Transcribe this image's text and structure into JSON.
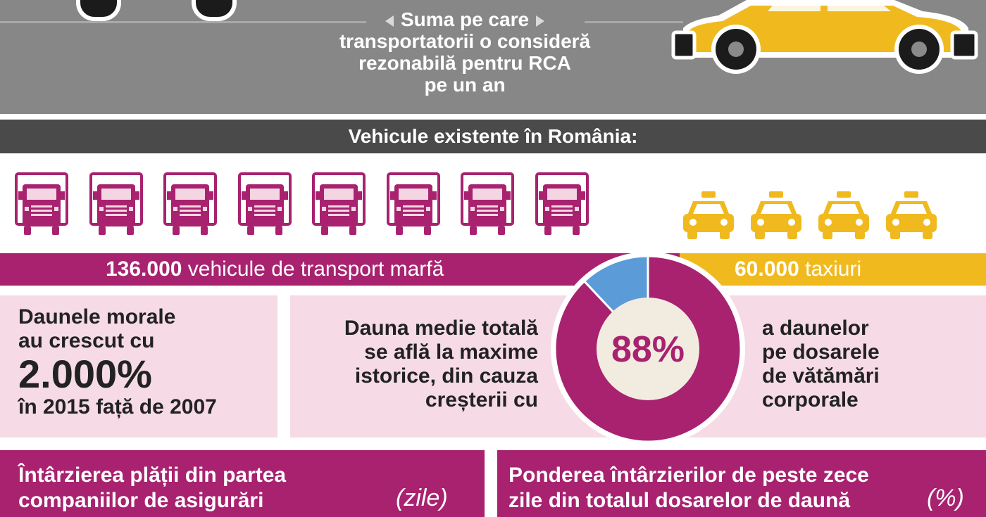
{
  "top": {
    "caption_lines": [
      "Suma pe care",
      "transportatorii o consideră",
      "rezonabilă pentru RCA",
      "pe un an"
    ]
  },
  "vehicles": {
    "header": "Vehicule existente în România:",
    "freight_count": "136.000",
    "freight_label": "vehicule de transport marfă",
    "taxi_count": "60.000",
    "taxi_label": "taxiuri",
    "truck_icon": "truck-icon",
    "taxi_icon": "taxi-icon"
  },
  "moral": {
    "line1": "Daunele morale",
    "line2": "au crescut cu",
    "value": "2.000%",
    "line4": "în 2015 față de 2007"
  },
  "damage": {
    "left_lines": [
      "Dauna medie totală",
      "se află la maxime",
      "istorice, din cauza",
      "creșterii cu"
    ],
    "percent": "88%",
    "right_lines": [
      "a daunelor",
      "pe dosarele",
      "de vătămări",
      "corporale"
    ]
  },
  "chart_data": {
    "type": "pie",
    "categories": [
      "daune pe dosarele de vătămări corporale",
      "restul"
    ],
    "values": [
      88,
      12
    ],
    "colors": [
      "#a8226f",
      "#5a9bd8"
    ]
  },
  "bottom": {
    "left_line1": "Întârzierea plății din partea",
    "left_line2": "companiilor de asigurări",
    "left_unit": "(zile)",
    "right_line1": "Ponderea întârzierilor de peste zece",
    "right_line2": "zile din totalul dosarelor de daună",
    "right_unit": "(%)"
  },
  "colors": {
    "magenta": "#a8226f",
    "yellow": "#f0ba1f",
    "pink_light": "#f6dbe6",
    "gray_band": "#878787",
    "dark_gray": "#4a4a4a",
    "blue_slice": "#5a9bd8"
  }
}
